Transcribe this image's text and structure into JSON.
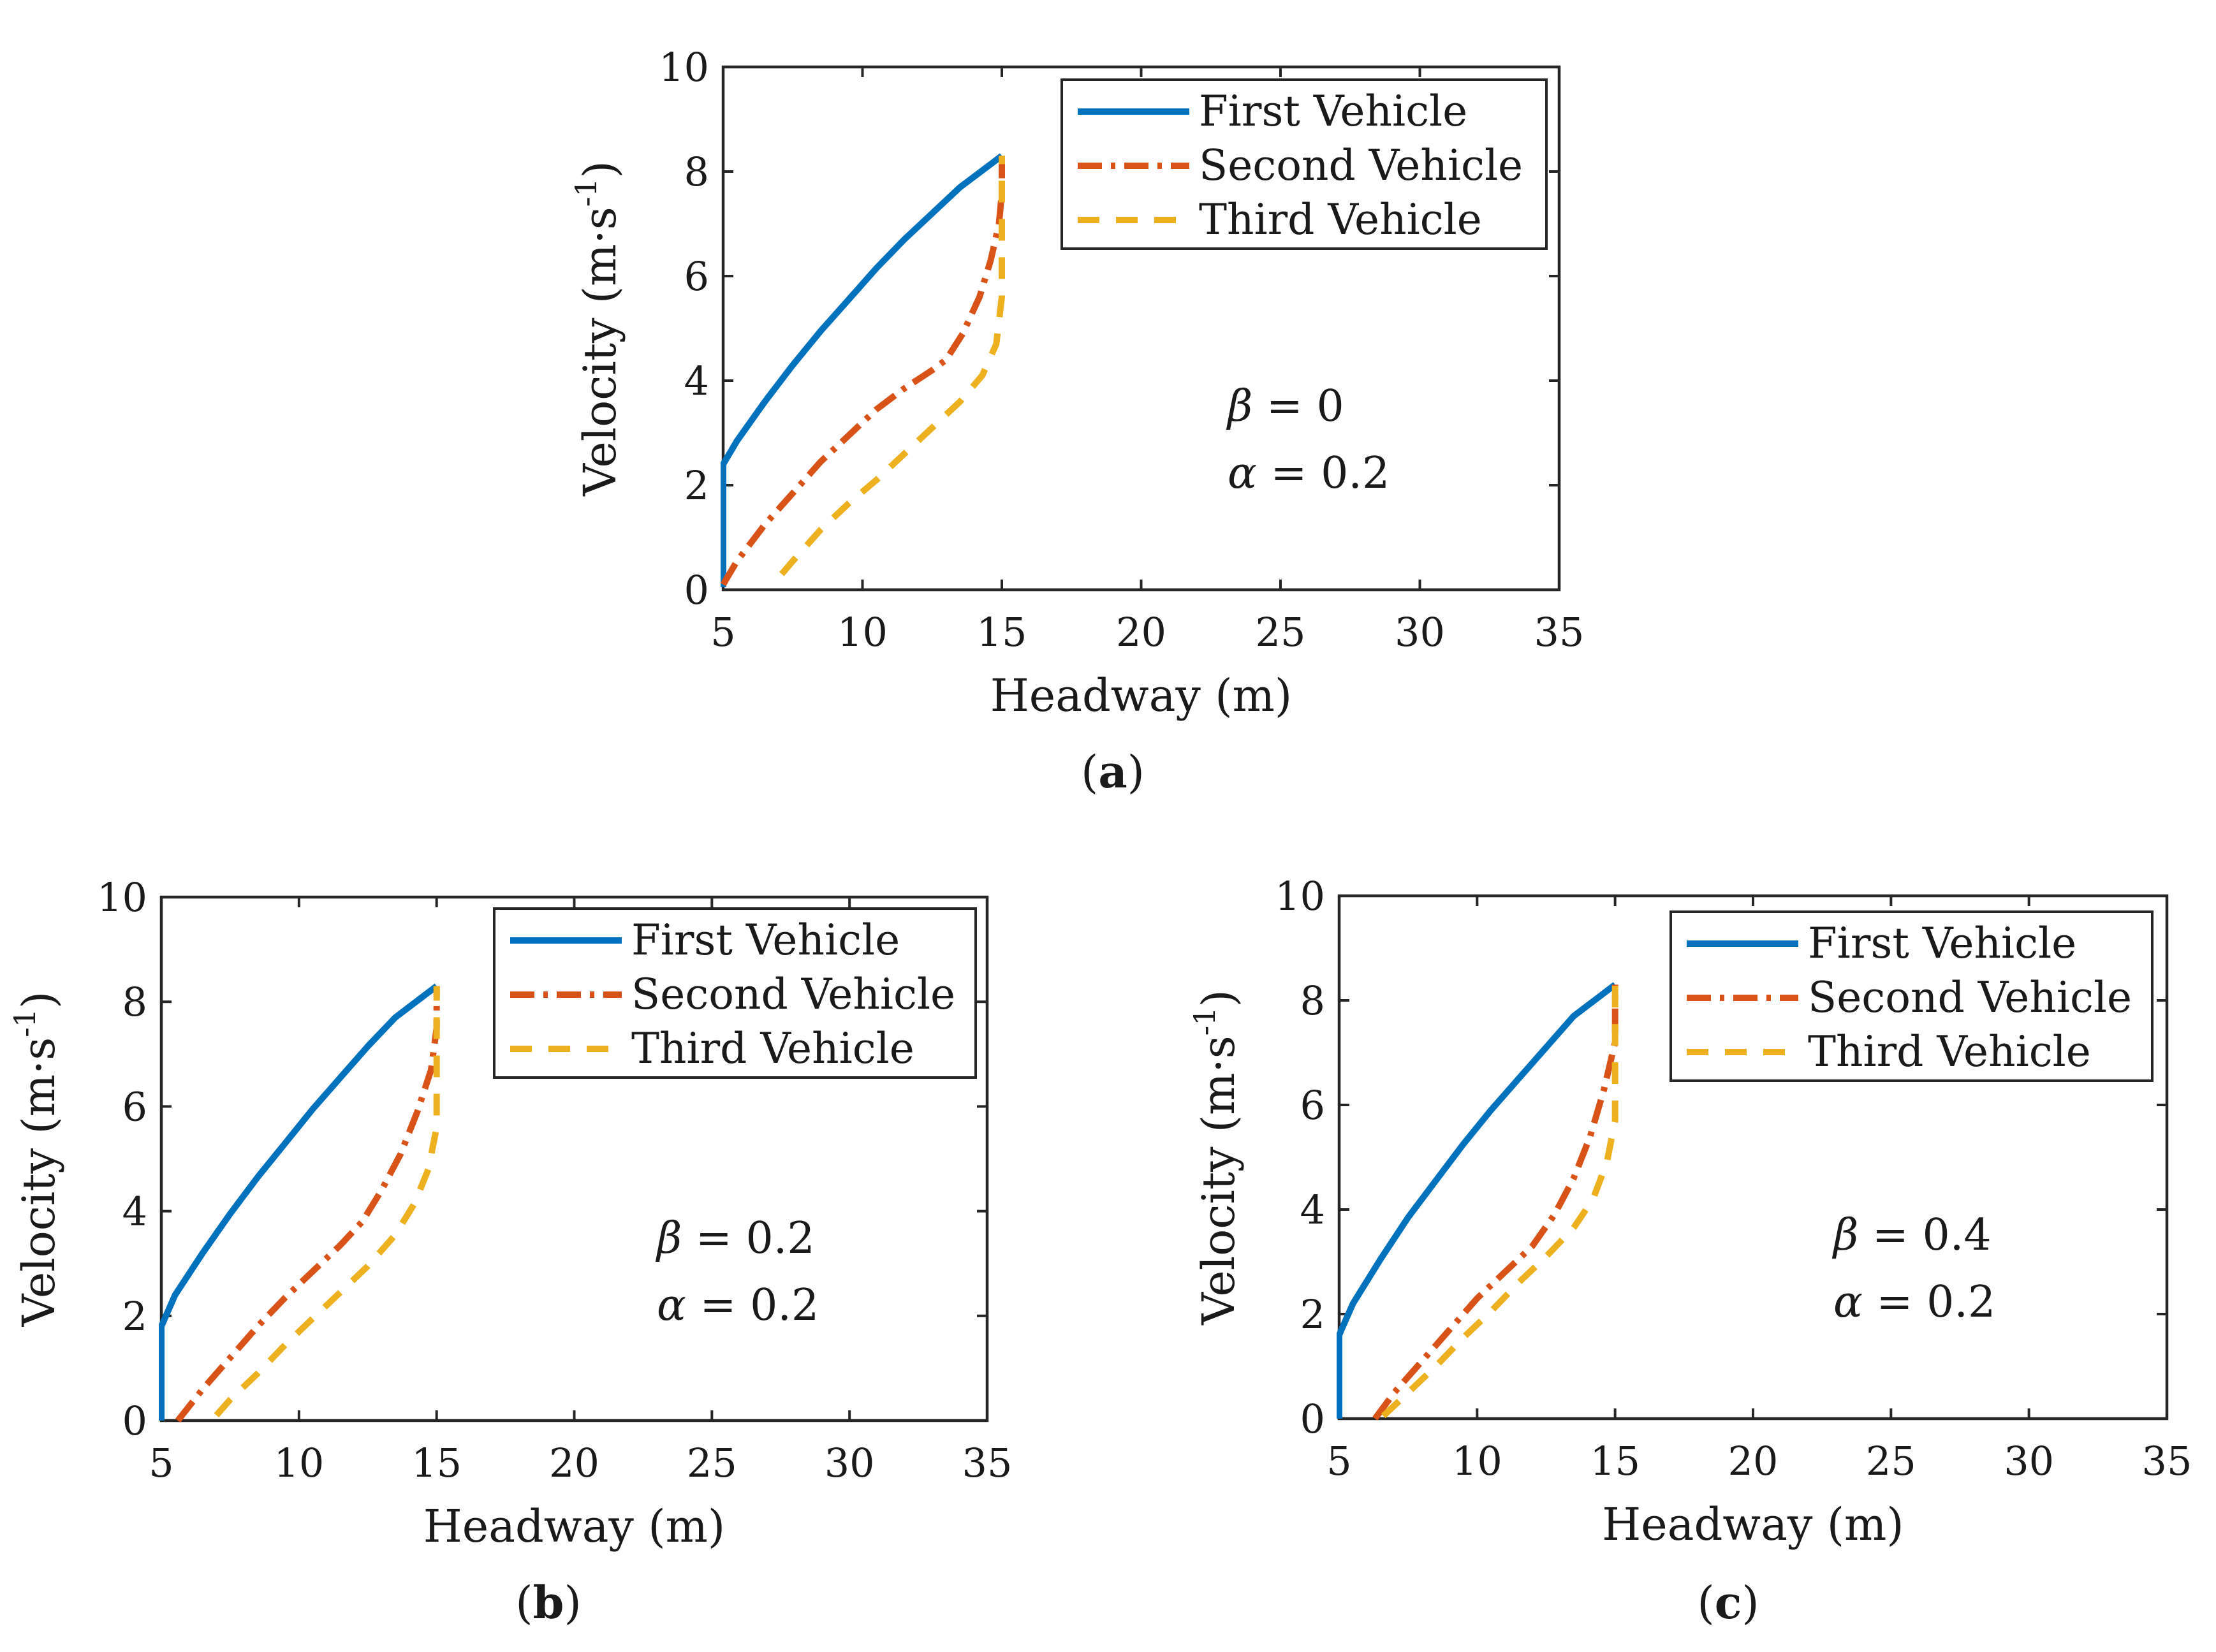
{
  "figure_captions": [
    "a",
    "b",
    "c"
  ],
  "colors": {
    "first": "#0072BD",
    "second": "#D95319",
    "third": "#EDB120",
    "axis": "#262626"
  },
  "chart_data": [
    {
      "type": "line",
      "caption": "a",
      "xlabel": "Headway (m)",
      "ylabel_main": "Velocity (m·s",
      "ylabel_sup": "-1",
      "ylabel_close": ")",
      "xlim": [
        5,
        35
      ],
      "ylim": [
        0,
        10
      ],
      "xticks": [
        5,
        10,
        15,
        20,
        25,
        30,
        35
      ],
      "yticks": [
        0,
        2,
        4,
        6,
        8,
        10
      ],
      "legend_position": "top-right",
      "annotations": {
        "beta_symbol": "β",
        "beta_text": " = 0",
        "alpha_symbol": "α",
        "alpha_text": " = 0.2"
      },
      "series": [
        {
          "name": "First Vehicle",
          "style": "solid",
          "x": [
            5.0,
            5.0,
            5.5,
            6.5,
            7.5,
            8.5,
            9.5,
            10.5,
            11.5,
            12.5,
            13.5,
            14.5,
            15.0
          ],
          "y": [
            0.05,
            2.4,
            2.85,
            3.6,
            4.3,
            4.95,
            5.55,
            6.15,
            6.7,
            7.2,
            7.7,
            8.1,
            8.3
          ]
        },
        {
          "name": "Second Vehicle",
          "style": "dashdot",
          "x": [
            5.0,
            5.5,
            6.5,
            7.5,
            8.5,
            9.5,
            10.5,
            11.5,
            12.5,
            13.0,
            13.6,
            14.2,
            14.6,
            14.9,
            15.0,
            15.0
          ],
          "y": [
            0.1,
            0.55,
            1.25,
            1.85,
            2.45,
            2.95,
            3.45,
            3.85,
            4.2,
            4.4,
            4.9,
            5.6,
            6.3,
            7.0,
            7.6,
            8.3
          ]
        },
        {
          "name": "Third Vehicle",
          "style": "dashed",
          "x": [
            7.1,
            7.5,
            8.5,
            9.5,
            10.5,
            11.5,
            12.5,
            13.5,
            14.3,
            14.8,
            15.0,
            15.0
          ],
          "y": [
            0.3,
            0.55,
            1.15,
            1.65,
            2.1,
            2.6,
            3.1,
            3.6,
            4.1,
            4.7,
            5.6,
            8.3
          ]
        }
      ]
    },
    {
      "type": "line",
      "caption": "b",
      "xlabel": "Headway (m)",
      "ylabel_main": "Velocity (m·s",
      "ylabel_sup": "-1",
      "ylabel_close": ")",
      "xlim": [
        5,
        35
      ],
      "ylim": [
        0,
        10
      ],
      "xticks": [
        5,
        10,
        15,
        20,
        25,
        30,
        35
      ],
      "yticks": [
        0,
        2,
        4,
        6,
        8,
        10
      ],
      "legend_position": "top-right",
      "annotations": {
        "beta_symbol": "β",
        "beta_text": " = 0.2",
        "alpha_symbol": "α",
        "alpha_text": " = 0.2"
      },
      "series": [
        {
          "name": "First Vehicle",
          "style": "solid",
          "x": [
            5.0,
            5.0,
            5.5,
            6.5,
            7.5,
            8.5,
            9.5,
            10.5,
            11.5,
            12.5,
            13.5,
            14.5,
            15.0
          ],
          "y": [
            0.0,
            1.8,
            2.4,
            3.2,
            3.95,
            4.65,
            5.3,
            5.95,
            6.55,
            7.15,
            7.7,
            8.1,
            8.3
          ]
        },
        {
          "name": "Second Vehicle",
          "style": "dashdot",
          "x": [
            5.6,
            6.5,
            7.5,
            8.5,
            9.5,
            10.5,
            11.5,
            12.3,
            13.0,
            13.7,
            14.3,
            14.8,
            15.0,
            15.0
          ],
          "y": [
            0.0,
            0.6,
            1.2,
            1.8,
            2.35,
            2.85,
            3.35,
            3.8,
            4.4,
            5.1,
            5.9,
            6.7,
            7.5,
            8.3
          ]
        },
        {
          "name": "Third Vehicle",
          "style": "dashed",
          "x": [
            7.0,
            7.5,
            8.5,
            9.5,
            10.5,
            11.5,
            12.5,
            13.5,
            14.2,
            14.7,
            15.0,
            15.0
          ],
          "y": [
            0.1,
            0.4,
            0.9,
            1.45,
            1.95,
            2.45,
            2.95,
            3.55,
            4.15,
            4.8,
            5.6,
            8.3
          ]
        }
      ]
    },
    {
      "type": "line",
      "caption": "c",
      "xlabel": "Headway (m)",
      "ylabel_main": "Velocity (m·s",
      "ylabel_sup": "-1",
      "ylabel_close": ")",
      "xlim": [
        5,
        35
      ],
      "ylim": [
        0,
        10
      ],
      "xticks": [
        5,
        10,
        15,
        20,
        25,
        30,
        35
      ],
      "yticks": [
        0,
        2,
        4,
        6,
        8,
        10
      ],
      "legend_position": "top-right",
      "annotations": {
        "beta_symbol": "β",
        "beta_text": " = 0.4",
        "alpha_symbol": "α",
        "alpha_text": " = 0.2"
      },
      "series": [
        {
          "name": "First Vehicle",
          "style": "solid",
          "x": [
            5.0,
            5.0,
            5.5,
            6.5,
            7.5,
            8.5,
            9.5,
            10.5,
            11.5,
            12.5,
            13.5,
            14.5,
            15.0
          ],
          "y": [
            0.0,
            1.6,
            2.2,
            3.05,
            3.85,
            4.55,
            5.25,
            5.9,
            6.5,
            7.1,
            7.7,
            8.1,
            8.3
          ]
        },
        {
          "name": "Second Vehicle",
          "style": "dashdot",
          "x": [
            6.3,
            7.0,
            8.0,
            9.0,
            10.0,
            11.0,
            12.0,
            12.8,
            13.5,
            14.1,
            14.6,
            15.0,
            15.0
          ],
          "y": [
            0.0,
            0.5,
            1.1,
            1.7,
            2.3,
            2.8,
            3.3,
            3.9,
            4.6,
            5.4,
            6.3,
            7.2,
            8.3
          ]
        },
        {
          "name": "Third Vehicle",
          "style": "dashed",
          "x": [
            6.6,
            7.5,
            8.5,
            9.5,
            10.5,
            11.5,
            12.5,
            13.5,
            14.2,
            14.7,
            15.0,
            15.0
          ],
          "y": [
            0.05,
            0.5,
            1.0,
            1.55,
            2.05,
            2.6,
            3.1,
            3.65,
            4.2,
            4.9,
            5.7,
            8.3
          ]
        }
      ]
    }
  ]
}
